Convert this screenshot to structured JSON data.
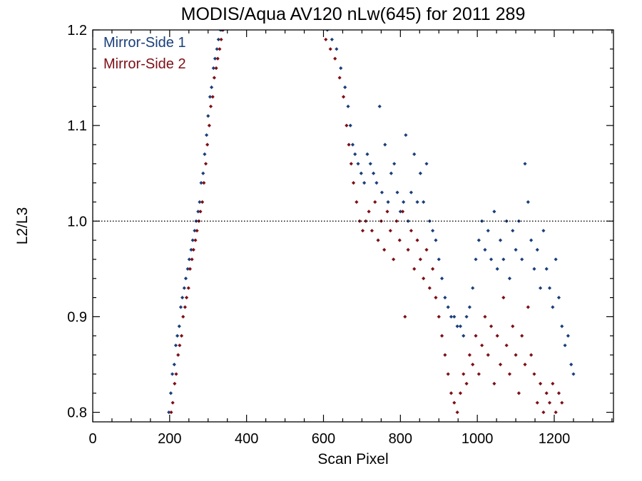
{
  "chart_data": {
    "type": "scatter",
    "title": "MODIS/Aqua AV120 nLw(645) for 2011 289",
    "xlabel": "Scan Pixel",
    "ylabel": "L2/L3",
    "xlim": [
      0,
      1354
    ],
    "ylim": [
      0.79,
      1.2
    ],
    "xticks": [
      0,
      200,
      400,
      600,
      800,
      1000,
      1200
    ],
    "xtick_labels": [
      "0",
      "200",
      "400",
      "600",
      "800",
      "1000",
      "1200"
    ],
    "yticks": [
      0.8,
      0.9,
      1.0,
      1.1,
      1.2
    ],
    "ytick_labels": [
      "0.8",
      "0.9",
      "1.0",
      "1.1",
      "1.2"
    ],
    "reference_line": 1.0,
    "legend_position": "top-left",
    "colors": {
      "series1": "#1a3f7a",
      "series2": "#7d0f16"
    },
    "series": [
      {
        "name": "Mirror-Side 1",
        "color": "#1a3f7a",
        "points": [
          [
            198,
            0.8
          ],
          [
            203,
            0.82
          ],
          [
            207,
            0.84
          ],
          [
            212,
            0.85
          ],
          [
            216,
            0.87
          ],
          [
            220,
            0.88
          ],
          [
            225,
            0.89
          ],
          [
            229,
            0.91
          ],
          [
            233,
            0.92
          ],
          [
            238,
            0.93
          ],
          [
            242,
            0.94
          ],
          [
            247,
            0.95
          ],
          [
            251,
            0.96
          ],
          [
            256,
            0.97
          ],
          [
            260,
            0.98
          ],
          [
            265,
            0.99
          ],
          [
            269,
            1.0
          ],
          [
            274,
            1.01
          ],
          [
            278,
            1.02
          ],
          [
            282,
            1.04
          ],
          [
            287,
            1.05
          ],
          [
            291,
            1.07
          ],
          [
            296,
            1.09
          ],
          [
            300,
            1.11
          ],
          [
            305,
            1.13
          ],
          [
            309,
            1.14
          ],
          [
            314,
            1.16
          ],
          [
            318,
            1.17
          ],
          [
            323,
            1.18
          ],
          [
            327,
            1.19
          ],
          [
            332,
            1.2
          ],
          [
            336,
            1.2
          ],
          [
            610,
            1.2
          ],
          [
            622,
            1.19
          ],
          [
            634,
            1.18
          ],
          [
            645,
            1.16
          ],
          [
            656,
            1.14
          ],
          [
            664,
            1.12
          ],
          [
            670,
            1.1
          ],
          [
            676,
            1.08
          ],
          [
            682,
            1.07
          ],
          [
            690,
            1.06
          ],
          [
            698,
            1.05
          ],
          [
            706,
            1.04
          ],
          [
            714,
            1.07
          ],
          [
            722,
            1.06
          ],
          [
            730,
            1.05
          ],
          [
            738,
            1.04
          ],
          [
            746,
            1.12
          ],
          [
            752,
            1.03
          ],
          [
            760,
            1.08
          ],
          [
            768,
            1.02
          ],
          [
            776,
            1.05
          ],
          [
            784,
            1.06
          ],
          [
            792,
            1.03
          ],
          [
            800,
            1.01
          ],
          [
            808,
            1.02
          ],
          [
            814,
            1.09
          ],
          [
            820,
            1.0
          ],
          [
            828,
            1.03
          ],
          [
            836,
            1.07
          ],
          [
            844,
            1.02
          ],
          [
            852,
            1.05
          ],
          [
            860,
            1.02
          ],
          [
            868,
            1.06
          ],
          [
            876,
            1.0
          ],
          [
            884,
            0.99
          ],
          [
            892,
            0.98
          ],
          [
            900,
            0.96
          ],
          [
            908,
            0.94
          ],
          [
            916,
            0.92
          ],
          [
            924,
            0.91
          ],
          [
            932,
            0.9
          ],
          [
            940,
            0.9
          ],
          [
            948,
            0.89
          ],
          [
            956,
            0.89
          ],
          [
            964,
            0.88
          ],
          [
            972,
            0.9
          ],
          [
            980,
            0.91
          ],
          [
            988,
            0.93
          ],
          [
            996,
            0.96
          ],
          [
            1004,
            0.98
          ],
          [
            1012,
            1.0
          ],
          [
            1020,
            0.97
          ],
          [
            1028,
            0.99
          ],
          [
            1036,
            0.96
          ],
          [
            1044,
            1.01
          ],
          [
            1052,
            0.95
          ],
          [
            1060,
            0.98
          ],
          [
            1068,
            0.96
          ],
          [
            1076,
            1.0
          ],
          [
            1084,
            0.94
          ],
          [
            1092,
            0.99
          ],
          [
            1100,
            0.97
          ],
          [
            1108,
            1.0
          ],
          [
            1116,
            0.96
          ],
          [
            1124,
            1.06
          ],
          [
            1132,
            1.02
          ],
          [
            1140,
            0.98
          ],
          [
            1148,
            0.95
          ],
          [
            1156,
            0.97
          ],
          [
            1164,
            0.93
          ],
          [
            1172,
            0.99
          ],
          [
            1180,
            0.95
          ],
          [
            1188,
            0.93
          ],
          [
            1196,
            0.91
          ],
          [
            1204,
            0.96
          ],
          [
            1212,
            0.92
          ],
          [
            1220,
            0.89
          ],
          [
            1228,
            0.87
          ],
          [
            1236,
            0.88
          ],
          [
            1244,
            0.85
          ],
          [
            1250,
            0.84
          ]
        ]
      },
      {
        "name": "Mirror-Side 2",
        "color": "#7d0f16",
        "points": [
          [
            204,
            0.8
          ],
          [
            208,
            0.81
          ],
          [
            213,
            0.83
          ],
          [
            217,
            0.84
          ],
          [
            222,
            0.86
          ],
          [
            226,
            0.87
          ],
          [
            231,
            0.88
          ],
          [
            235,
            0.9
          ],
          [
            240,
            0.91
          ],
          [
            244,
            0.92
          ],
          [
            249,
            0.93
          ],
          [
            253,
            0.95
          ],
          [
            258,
            0.96
          ],
          [
            262,
            0.97
          ],
          [
            267,
            0.98
          ],
          [
            271,
            0.99
          ],
          [
            276,
            1.0
          ],
          [
            280,
            1.01
          ],
          [
            285,
            1.02
          ],
          [
            289,
            1.04
          ],
          [
            294,
            1.06
          ],
          [
            298,
            1.08
          ],
          [
            303,
            1.1
          ],
          [
            307,
            1.12
          ],
          [
            312,
            1.13
          ],
          [
            316,
            1.15
          ],
          [
            321,
            1.16
          ],
          [
            325,
            1.17
          ],
          [
            330,
            1.18
          ],
          [
            334,
            1.19
          ],
          [
            339,
            1.2
          ],
          [
            606,
            1.19
          ],
          [
            618,
            1.18
          ],
          [
            630,
            1.17
          ],
          [
            642,
            1.15
          ],
          [
            652,
            1.13
          ],
          [
            660,
            1.1
          ],
          [
            666,
            1.08
          ],
          [
            672,
            1.06
          ],
          [
            678,
            1.04
          ],
          [
            686,
            1.02
          ],
          [
            694,
            1.0
          ],
          [
            702,
            0.99
          ],
          [
            710,
            1.0
          ],
          [
            718,
            1.01
          ],
          [
            726,
            0.99
          ],
          [
            734,
            1.02
          ],
          [
            742,
            0.98
          ],
          [
            750,
            1.0
          ],
          [
            758,
            0.97
          ],
          [
            766,
            1.01
          ],
          [
            774,
            0.99
          ],
          [
            782,
            0.96
          ],
          [
            790,
            1.0
          ],
          [
            798,
            0.98
          ],
          [
            806,
            1.01
          ],
          [
            812,
            0.9
          ],
          [
            820,
            0.97
          ],
          [
            828,
            0.99
          ],
          [
            836,
            0.95
          ],
          [
            844,
            0.98
          ],
          [
            852,
            0.96
          ],
          [
            860,
            0.94
          ],
          [
            868,
            0.97
          ],
          [
            876,
            0.93
          ],
          [
            884,
            0.95
          ],
          [
            892,
            0.92
          ],
          [
            900,
            0.9
          ],
          [
            908,
            0.88
          ],
          [
            916,
            0.86
          ],
          [
            924,
            0.84
          ],
          [
            932,
            0.82
          ],
          [
            940,
            0.81
          ],
          [
            948,
            0.8
          ],
          [
            956,
            0.82
          ],
          [
            964,
            0.84
          ],
          [
            972,
            0.83
          ],
          [
            980,
            0.86
          ],
          [
            988,
            0.85
          ],
          [
            996,
            0.88
          ],
          [
            1004,
            0.84
          ],
          [
            1012,
            0.87
          ],
          [
            1020,
            0.9
          ],
          [
            1028,
            0.86
          ],
          [
            1036,
            0.89
          ],
          [
            1044,
            0.83
          ],
          [
            1052,
            0.88
          ],
          [
            1060,
            0.85
          ],
          [
            1068,
            0.92
          ],
          [
            1076,
            0.87
          ],
          [
            1084,
            0.84
          ],
          [
            1092,
            0.89
          ],
          [
            1100,
            0.86
          ],
          [
            1108,
            0.82
          ],
          [
            1116,
            0.88
          ],
          [
            1124,
            0.85
          ],
          [
            1132,
            0.91
          ],
          [
            1140,
            0.86
          ],
          [
            1148,
            0.84
          ],
          [
            1156,
            0.81
          ],
          [
            1164,
            0.83
          ],
          [
            1172,
            0.8
          ],
          [
            1180,
            0.82
          ],
          [
            1188,
            0.81
          ],
          [
            1196,
            0.83
          ],
          [
            1204,
            0.8
          ],
          [
            1212,
            0.82
          ],
          [
            1220,
            0.81
          ]
        ]
      }
    ]
  }
}
